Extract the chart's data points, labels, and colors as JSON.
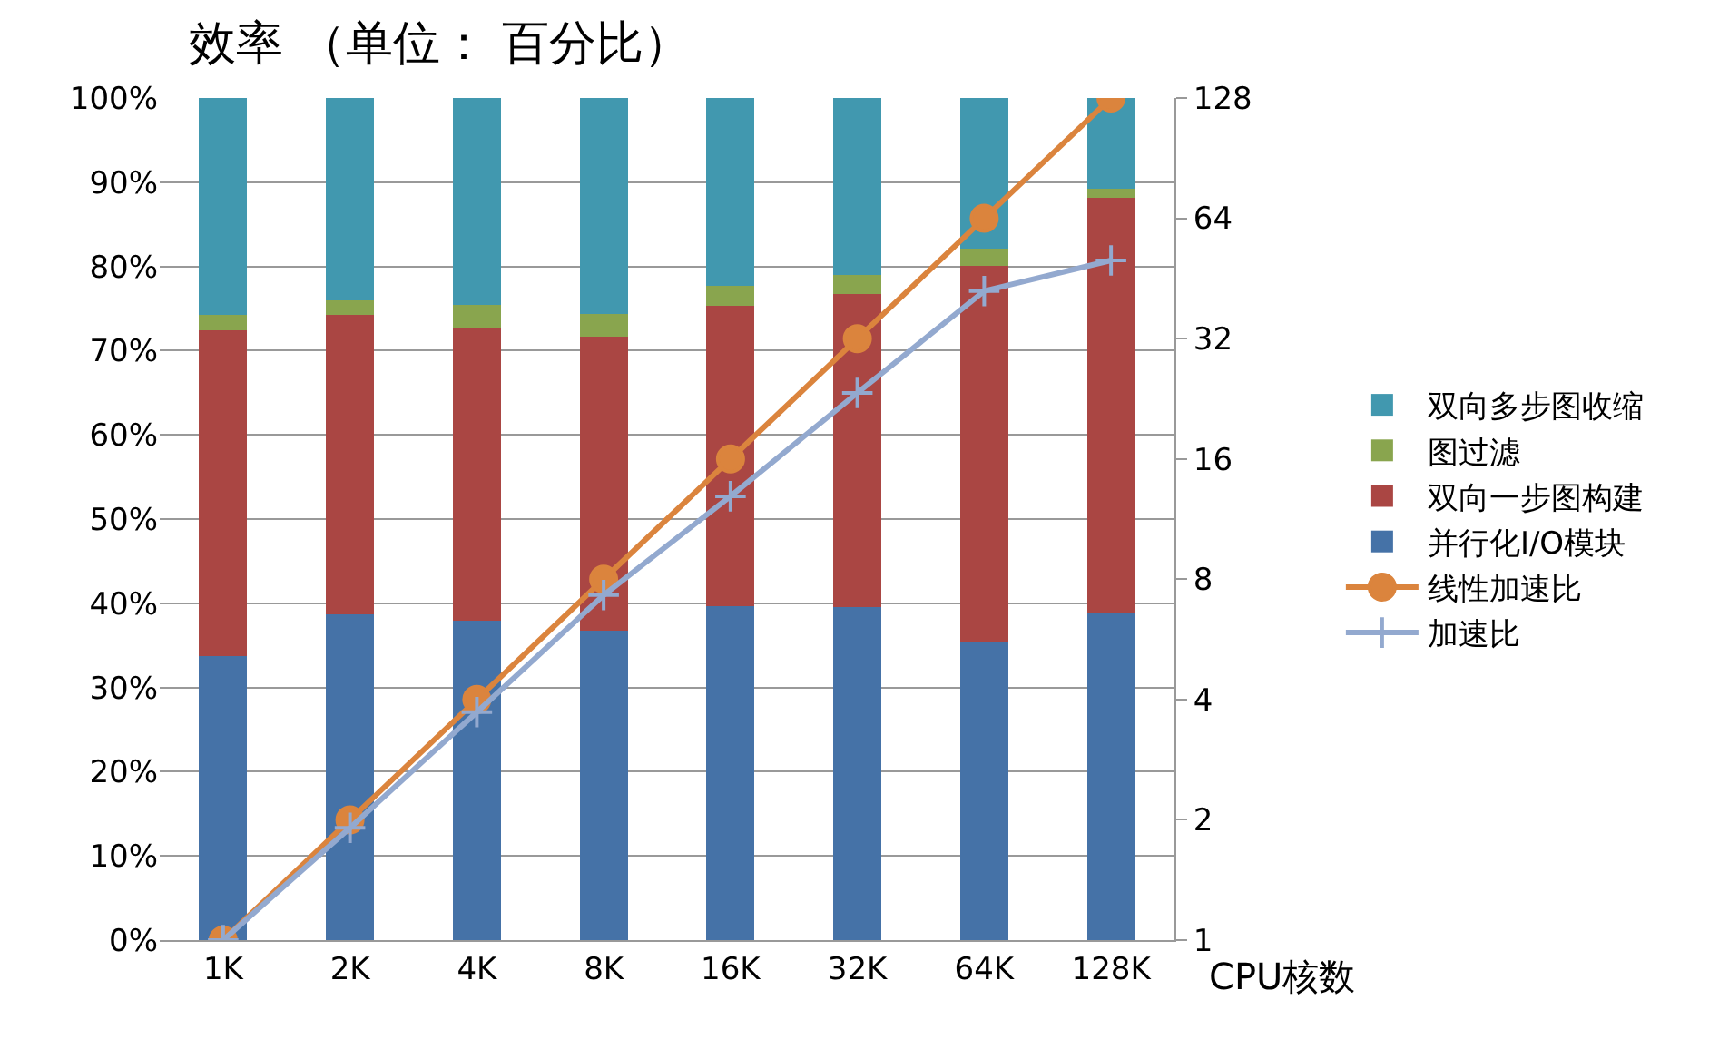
{
  "chart_data": {
    "type": "bar",
    "title": "效率 （单位： 百分比）",
    "xlabel": "CPU核数",
    "categories": [
      "1K",
      "2K",
      "4K",
      "8K",
      "16K",
      "32K",
      "64K",
      "128K"
    ],
    "stacked": true,
    "series": [
      {
        "name": "并行化I/O模块",
        "color": "#4572a7",
        "values": [
          33.7,
          38.7,
          37.9,
          36.8,
          39.7,
          39.5,
          35.4,
          38.9
        ]
      },
      {
        "name": "双向一步图构建",
        "color": "#aa4643",
        "values": [
          38.7,
          35.5,
          34.7,
          34.9,
          35.6,
          37.2,
          44.7,
          49.2
        ]
      },
      {
        "name": "图过滤",
        "color": "#89a54e",
        "values": [
          1.8,
          1.8,
          2.8,
          2.7,
          2.4,
          2.3,
          2.0,
          1.1
        ]
      },
      {
        "name": "双向多步图收缩",
        "color": "#4198af",
        "values": [
          25.8,
          24.0,
          24.6,
          25.6,
          22.3,
          21.0,
          17.9,
          10.8
        ]
      },
      {
        "name": "线性加速比",
        "type": "line",
        "axis": "y2",
        "marker": "circle",
        "color": "#db843d",
        "values": [
          1,
          2,
          4,
          8,
          16,
          32,
          64,
          128
        ]
      },
      {
        "name": "加速比",
        "type": "line",
        "axis": "y2",
        "marker": "cross",
        "color": "#93a9cf",
        "values": [
          1,
          1.91,
          3.72,
          7.3,
          12.9,
          23.4,
          42.1,
          50.2
        ]
      }
    ],
    "ylim": [
      0,
      100
    ],
    "yticks": [
      {
        "value": 0,
        "label": "0%"
      },
      {
        "value": 10,
        "label": "10%"
      },
      {
        "value": 20,
        "label": "20%"
      },
      {
        "value": 30,
        "label": "30%"
      },
      {
        "value": 40,
        "label": "40%"
      },
      {
        "value": 50,
        "label": "50%"
      },
      {
        "value": 60,
        "label": "60%"
      },
      {
        "value": 70,
        "label": "70%"
      },
      {
        "value": 80,
        "label": "80%"
      },
      {
        "value": 90,
        "label": "90%"
      },
      {
        "value": 100,
        "label": "100%"
      }
    ],
    "y2lim": [
      1,
      128
    ],
    "y2ticks": [
      1,
      2,
      4,
      8,
      16,
      32,
      64,
      128
    ],
    "log": "y2",
    "grid": "y",
    "legend": "right"
  }
}
